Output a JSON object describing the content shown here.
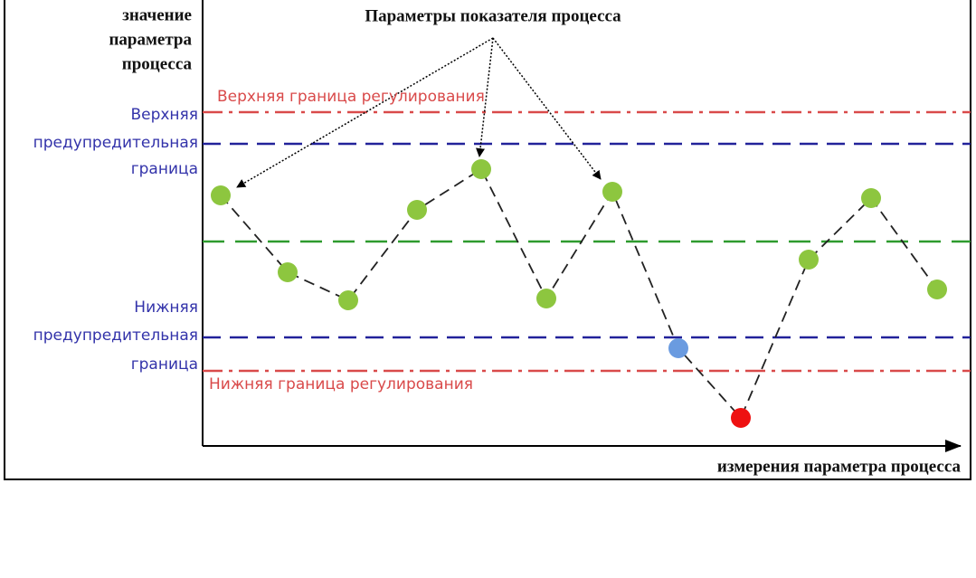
{
  "title": "Параметры показателя процесса",
  "y_axis_label": [
    "значение",
    "параметра",
    "процесса"
  ],
  "x_axis_label": "измерения параметра процесса",
  "upper_control_limit": "Верхняя граница регулирования",
  "lower_control_limit": "Нижняя граница регулирования",
  "upper_warning_limit": [
    "Верхняя",
    "предупредительная",
    "граница"
  ],
  "lower_warning_limit": [
    "Нижняя",
    "предупредительная",
    "граница"
  ]
}
